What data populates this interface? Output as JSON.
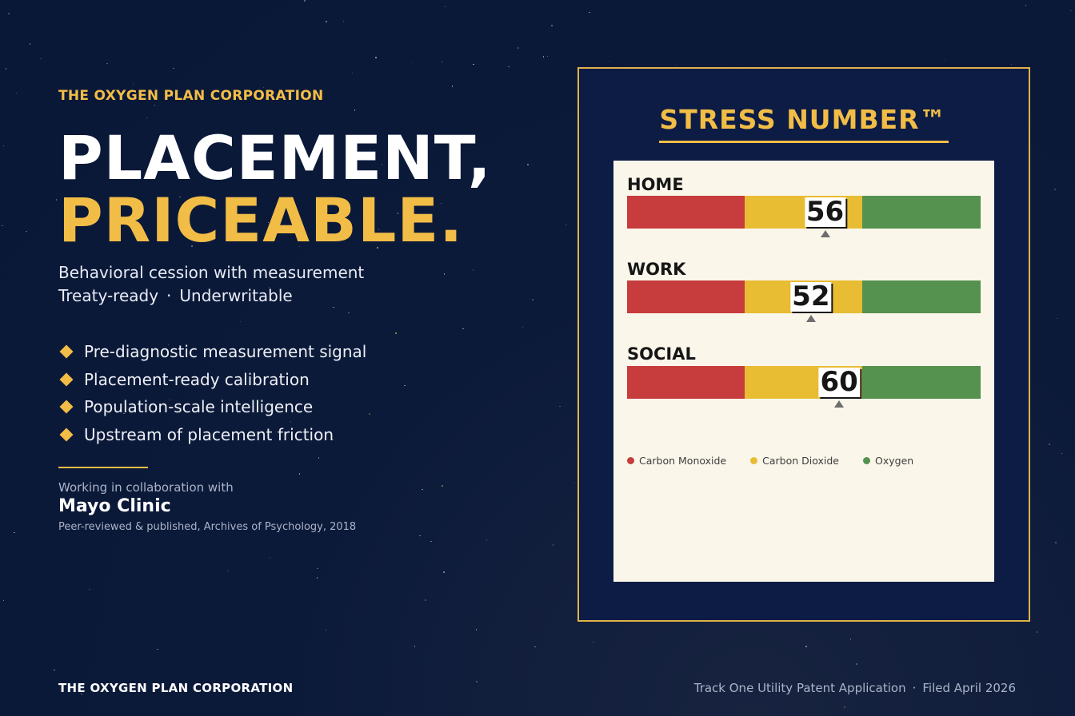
{
  "company": "THE OXYGEN PLAN CORPORATION",
  "headline": {
    "line1": "PLACEMENT,",
    "line2": "PRICEABLE."
  },
  "subtitle": {
    "line1": "Behavioral cession with measurement",
    "line2_a": "Treaty-ready",
    "separator": "·",
    "line2_b": "Underwritable"
  },
  "bullets": [
    "Pre-diagnostic measurement signal",
    "Placement-ready calibration",
    "Population-scale intelligence",
    "Upstream of placement friction"
  ],
  "collaboration": {
    "label": "Working in collaboration with",
    "partner": "Mayo Clinic",
    "citation": "Peer-reviewed & published, Archives of Psychology, 2018"
  },
  "footer": {
    "company": "THE OXYGEN PLAN CORPORATION",
    "patent": "Track One Utility Patent Application",
    "separator": "·",
    "filed": "Filed April 2026"
  },
  "panel": {
    "title": "STRESS NUMBER™",
    "scale": {
      "min": 0,
      "max": 100
    },
    "rows": [
      {
        "label": "HOME",
        "score": 56
      },
      {
        "label": "WORK",
        "score": 52
      },
      {
        "label": "SOCIAL",
        "score": 60
      }
    ],
    "legend": [
      {
        "label": "Carbon Monoxide",
        "color": "#c73c3c"
      },
      {
        "label": "Carbon Dioxide",
        "color": "#e8bc33"
      },
      {
        "label": "Oxygen",
        "color": "#55914f"
      }
    ]
  },
  "colors": {
    "accent": "#f2bd46",
    "background": "#0b1a3a",
    "red": "#c73c3c",
    "yellow": "#e8bc33",
    "green": "#55914f"
  }
}
